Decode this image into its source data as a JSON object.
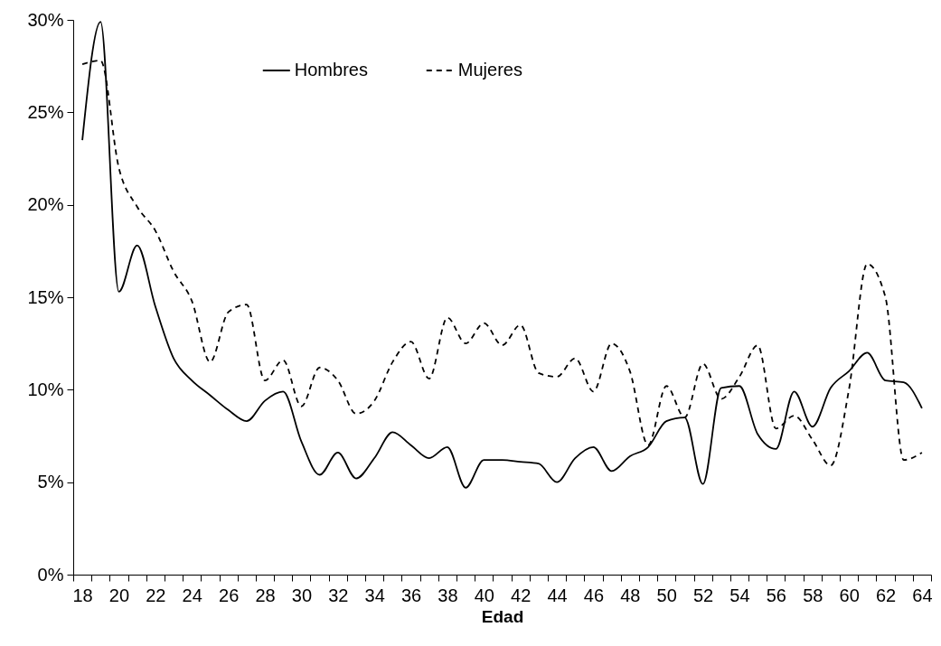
{
  "chart_data": {
    "type": "line",
    "xlabel": "Edad",
    "categories": [
      "18",
      null,
      "20",
      null,
      "22",
      null,
      "24",
      null,
      "26",
      null,
      "28",
      null,
      "30",
      null,
      "32",
      null,
      "34",
      null,
      "36",
      null,
      "38",
      null,
      "40",
      null,
      "42",
      null,
      "44",
      null,
      "46",
      null,
      "48",
      null,
      "50",
      null,
      "52",
      null,
      "54",
      null,
      "56",
      null,
      "58",
      null,
      "60",
      null,
      "62",
      null,
      "64"
    ],
    "series": [
      {
        "name": "Hombres",
        "color": "#000000",
        "line_style": "solid",
        "values": [
          23.5,
          29.9,
          15.3,
          17.8,
          14.5,
          11.7,
          10.5,
          9.7,
          8.9,
          8.3,
          9.4,
          9.9,
          7.2,
          5.4,
          6.6,
          5.2,
          6.3,
          7.7,
          7.0,
          6.3,
          6.9,
          4.7,
          6.2,
          6.2,
          6.1,
          6.0,
          5.0,
          6.3,
          6.9,
          5.6,
          6.4,
          6.9,
          8.3,
          8.5,
          4.9,
          10.1,
          10.2,
          7.6,
          6.8,
          9.9,
          8.0,
          10.1,
          11.0,
          12.0,
          10.5,
          10.4,
          9.0
        ]
      },
      {
        "name": "Mujeres",
        "color": "#000000",
        "line_style": "dashed",
        "values": [
          27.6,
          27.8,
          22.0,
          19.9,
          18.6,
          16.4,
          14.8,
          11.5,
          14.2,
          14.6,
          10.5,
          11.6,
          9.1,
          11.2,
          10.5,
          8.7,
          9.4,
          11.5,
          12.6,
          10.6,
          13.9,
          12.5,
          13.6,
          12.4,
          13.5,
          10.9,
          10.7,
          11.7,
          9.9,
          12.5,
          11.0,
          7.0,
          10.2,
          8.5,
          11.4,
          9.5,
          10.7,
          12.4,
          7.9,
          8.6,
          7.3,
          5.9,
          10.0,
          16.8,
          15.0,
          6.2,
          6.6
        ]
      }
    ],
    "ylim": [
      0,
      30
    ],
    "yticks": [
      {
        "value": 0,
        "label": "0%"
      },
      {
        "value": 5,
        "label": "5%"
      },
      {
        "value": 10,
        "label": "10%"
      },
      {
        "value": 15,
        "label": "15%"
      },
      {
        "value": 20,
        "label": "20%"
      },
      {
        "value": 25,
        "label": "25%"
      },
      {
        "value": 30,
        "label": "30%"
      }
    ],
    "grid": false,
    "legend": "top",
    "marker": "none"
  }
}
